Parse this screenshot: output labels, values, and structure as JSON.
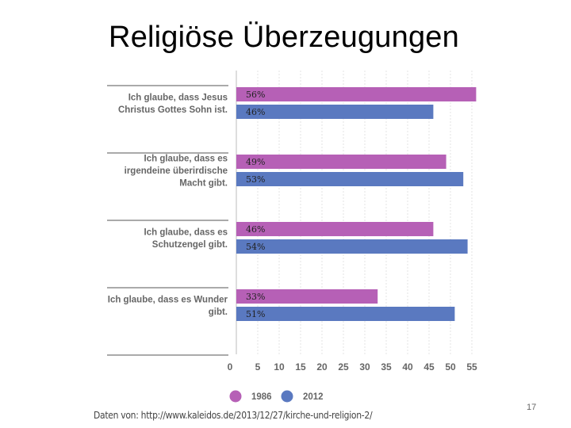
{
  "slide": {
    "title": "Religiöse Überzeugungen",
    "source": "Daten von: http://www.kaleidos.de/2013/12/27/kirche-und-religion-2/",
    "page_number": "17"
  },
  "chart_data": {
    "type": "bar",
    "orientation": "horizontal",
    "title": "",
    "xlabel": "",
    "ylabel": "",
    "xlim": [
      0,
      57
    ],
    "x_ticks": [
      0,
      5,
      10,
      15,
      20,
      25,
      30,
      35,
      40,
      45,
      50,
      55
    ],
    "grid": true,
    "categories": [
      [
        "Ich glaube, dass Jesus",
        "Christus Gottes Sohn ist."
      ],
      [
        "Ich glaube, dass es",
        "irgendeine überirdische",
        "Macht gibt."
      ],
      [
        "Ich glaube, dass es",
        "Schutzengel gibt."
      ],
      [
        "Ich glaube, dass es Wunder",
        "gibt."
      ]
    ],
    "series": [
      {
        "name": "1986",
        "color": "#b660b6",
        "values": [
          56,
          49,
          46,
          33
        ],
        "labels": [
          "56%",
          "49%",
          "46%",
          "33%"
        ]
      },
      {
        "name": "2012",
        "color": "#5a79c0",
        "values": [
          46,
          53,
          54,
          51
        ],
        "labels": [
          "46%",
          "53%",
          "54%",
          "51%"
        ]
      }
    ],
    "legend_position": "bottom"
  }
}
